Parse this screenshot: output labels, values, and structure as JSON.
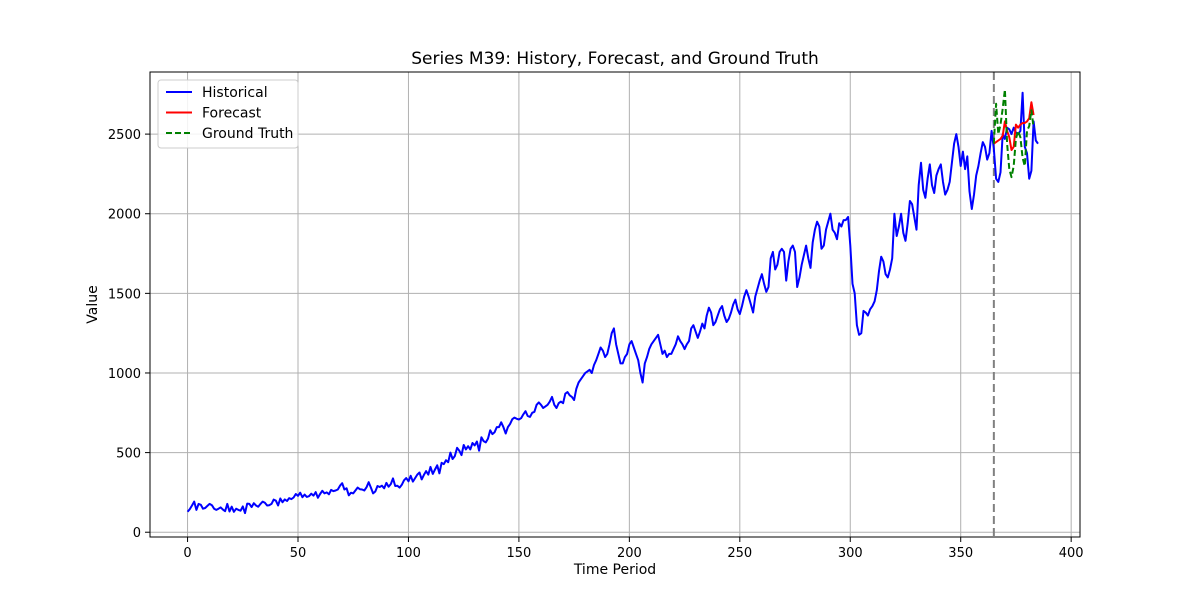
{
  "chart_data": {
    "type": "line",
    "title": "Series M39: History, Forecast, and Ground Truth",
    "xlabel": "Time Period",
    "ylabel": "Value",
    "xlim": [
      -17,
      404
    ],
    "ylim": [
      -30,
      2890
    ],
    "xticks": [
      0,
      50,
      100,
      150,
      200,
      250,
      300,
      350,
      400
    ],
    "yticks": [
      0,
      500,
      1000,
      1500,
      2000,
      2500
    ],
    "grid": true,
    "legend_position": "top-left",
    "forecast_start": 365,
    "series": [
      {
        "name": "Historical",
        "color": "#0000ff",
        "style": "solid",
        "x_start": 0,
        "values": [
          128,
          145,
          168,
          192,
          140,
          178,
          172,
          148,
          152,
          165,
          178,
          170,
          148,
          140,
          148,
          156,
          142,
          132,
          178,
          130,
          160,
          128,
          148,
          140,
          135,
          162,
          120,
          180,
          178,
          158,
          182,
          168,
          160,
          178,
          192,
          185,
          168,
          170,
          178,
          205,
          198,
          168,
          212,
          188,
          206,
          196,
          214,
          208,
          218,
          240,
          228,
          248,
          220,
          236,
          222,
          226,
          242,
          230,
          252,
          216,
          240,
          260,
          244,
          250,
          238,
          266,
          258,
          262,
          268,
          292,
          308,
          268,
          276,
          232,
          248,
          244,
          262,
          280,
          270,
          268,
          262,
          282,
          314,
          280,
          244,
          256,
          290,
          284,
          292,
          276,
          310,
          286,
          302,
          338,
          290,
          292,
          280,
          298,
          326,
          340,
          320,
          354,
          318,
          340,
          362,
          375,
          332,
          360,
          384,
          362,
          410,
          366,
          394,
          420,
          370,
          436,
          428,
          452,
          440,
          500,
          460,
          478,
          530,
          512,
          484,
          548,
          520,
          540,
          520,
          560,
          545,
          570,
          512,
          596,
          572,
          564,
          588,
          640,
          616,
          628,
          660,
          660,
          690,
          660,
          620,
          660,
          680,
          710,
          720,
          712,
          708,
          716,
          740,
          760,
          730,
          724,
          750,
          756,
          800,
          815,
          800,
          780,
          790,
          800,
          820,
          850,
          800,
          780,
          810,
          820,
          810,
          870,
          880,
          860,
          850,
          830,
          900,
          940,
          960,
          980,
          1000,
          1010,
          1020,
          1000,
          1050,
          1080,
          1120,
          1160,
          1140,
          1100,
          1120,
          1180,
          1250,
          1280,
          1180,
          1120,
          1060,
          1060,
          1100,
          1120,
          1180,
          1200,
          1160,
          1120,
          1080,
          1000,
          940,
          1060,
          1100,
          1150,
          1180,
          1200,
          1220,
          1240,
          1180,
          1120,
          1140,
          1100,
          1120,
          1120,
          1150,
          1180,
          1230,
          1200,
          1180,
          1150,
          1180,
          1200,
          1280,
          1300,
          1260,
          1220,
          1260,
          1310,
          1280,
          1360,
          1410,
          1380,
          1300,
          1320,
          1360,
          1400,
          1420,
          1360,
          1320,
          1340,
          1380,
          1430,
          1460,
          1400,
          1370,
          1420,
          1480,
          1520,
          1480,
          1430,
          1380,
          1480,
          1530,
          1580,
          1620,
          1560,
          1510,
          1540,
          1720,
          1760,
          1650,
          1680,
          1760,
          1780,
          1760,
          1580,
          1700,
          1780,
          1800,
          1760,
          1540,
          1600,
          1680,
          1740,
          1800,
          1720,
          1660,
          1820,
          1900,
          1950,
          1920,
          1780,
          1800,
          1900,
          1950,
          2000,
          1900,
          1880,
          1840,
          1940,
          1920,
          1960,
          1960,
          1980,
          1800,
          1560,
          1500,
          1300,
          1240,
          1250,
          1390,
          1380,
          1360,
          1400,
          1420,
          1450,
          1520,
          1640,
          1730,
          1700,
          1620,
          1600,
          1650,
          1720,
          2000,
          1860,
          1920,
          2000,
          1880,
          1830,
          1940,
          2080,
          2060,
          1980,
          1900,
          2180,
          2320,
          2150,
          2100,
          2220,
          2310,
          2180,
          2130,
          2240,
          2280,
          2310,
          2200,
          2120,
          2150,
          2200,
          2320,
          2440,
          2500,
          2420,
          2300,
          2390,
          2280,
          2360,
          2140,
          2030,
          2120,
          2240,
          2300,
          2380,
          2450,
          2420,
          2340,
          2380,
          2520,
          2410,
          2220,
          2200,
          2260,
          2500,
          2470,
          2540,
          2530,
          2500,
          2540,
          2510,
          2500,
          2520,
          2760,
          2420,
          2380,
          2220,
          2270,
          2580,
          2460,
          2440
        ]
      },
      {
        "name": "Forecast",
        "color": "#ff0000",
        "style": "solid",
        "x": [
          365,
          366,
          367,
          368,
          369,
          370,
          371,
          372,
          373,
          374,
          375,
          376,
          377,
          378,
          379,
          380,
          381,
          382,
          383
        ],
        "values": [
          2440,
          2450,
          2460,
          2470,
          2490,
          2580,
          2520,
          2480,
          2400,
          2420,
          2560,
          2540,
          2560,
          2570,
          2570,
          2580,
          2600,
          2700,
          2620
        ]
      },
      {
        "name": "Ground Truth",
        "color": "#008000",
        "style": "dashed",
        "x": [
          365,
          366,
          367,
          368,
          369,
          370,
          371,
          372,
          373,
          374,
          375,
          376,
          377,
          378,
          379,
          380,
          381,
          382,
          383
        ],
        "values": [
          2440,
          2690,
          2500,
          2560,
          2660,
          2780,
          2440,
          2280,
          2230,
          2300,
          2470,
          2520,
          2480,
          2350,
          2300,
          2520,
          2550,
          2650,
          2540
        ]
      }
    ]
  }
}
